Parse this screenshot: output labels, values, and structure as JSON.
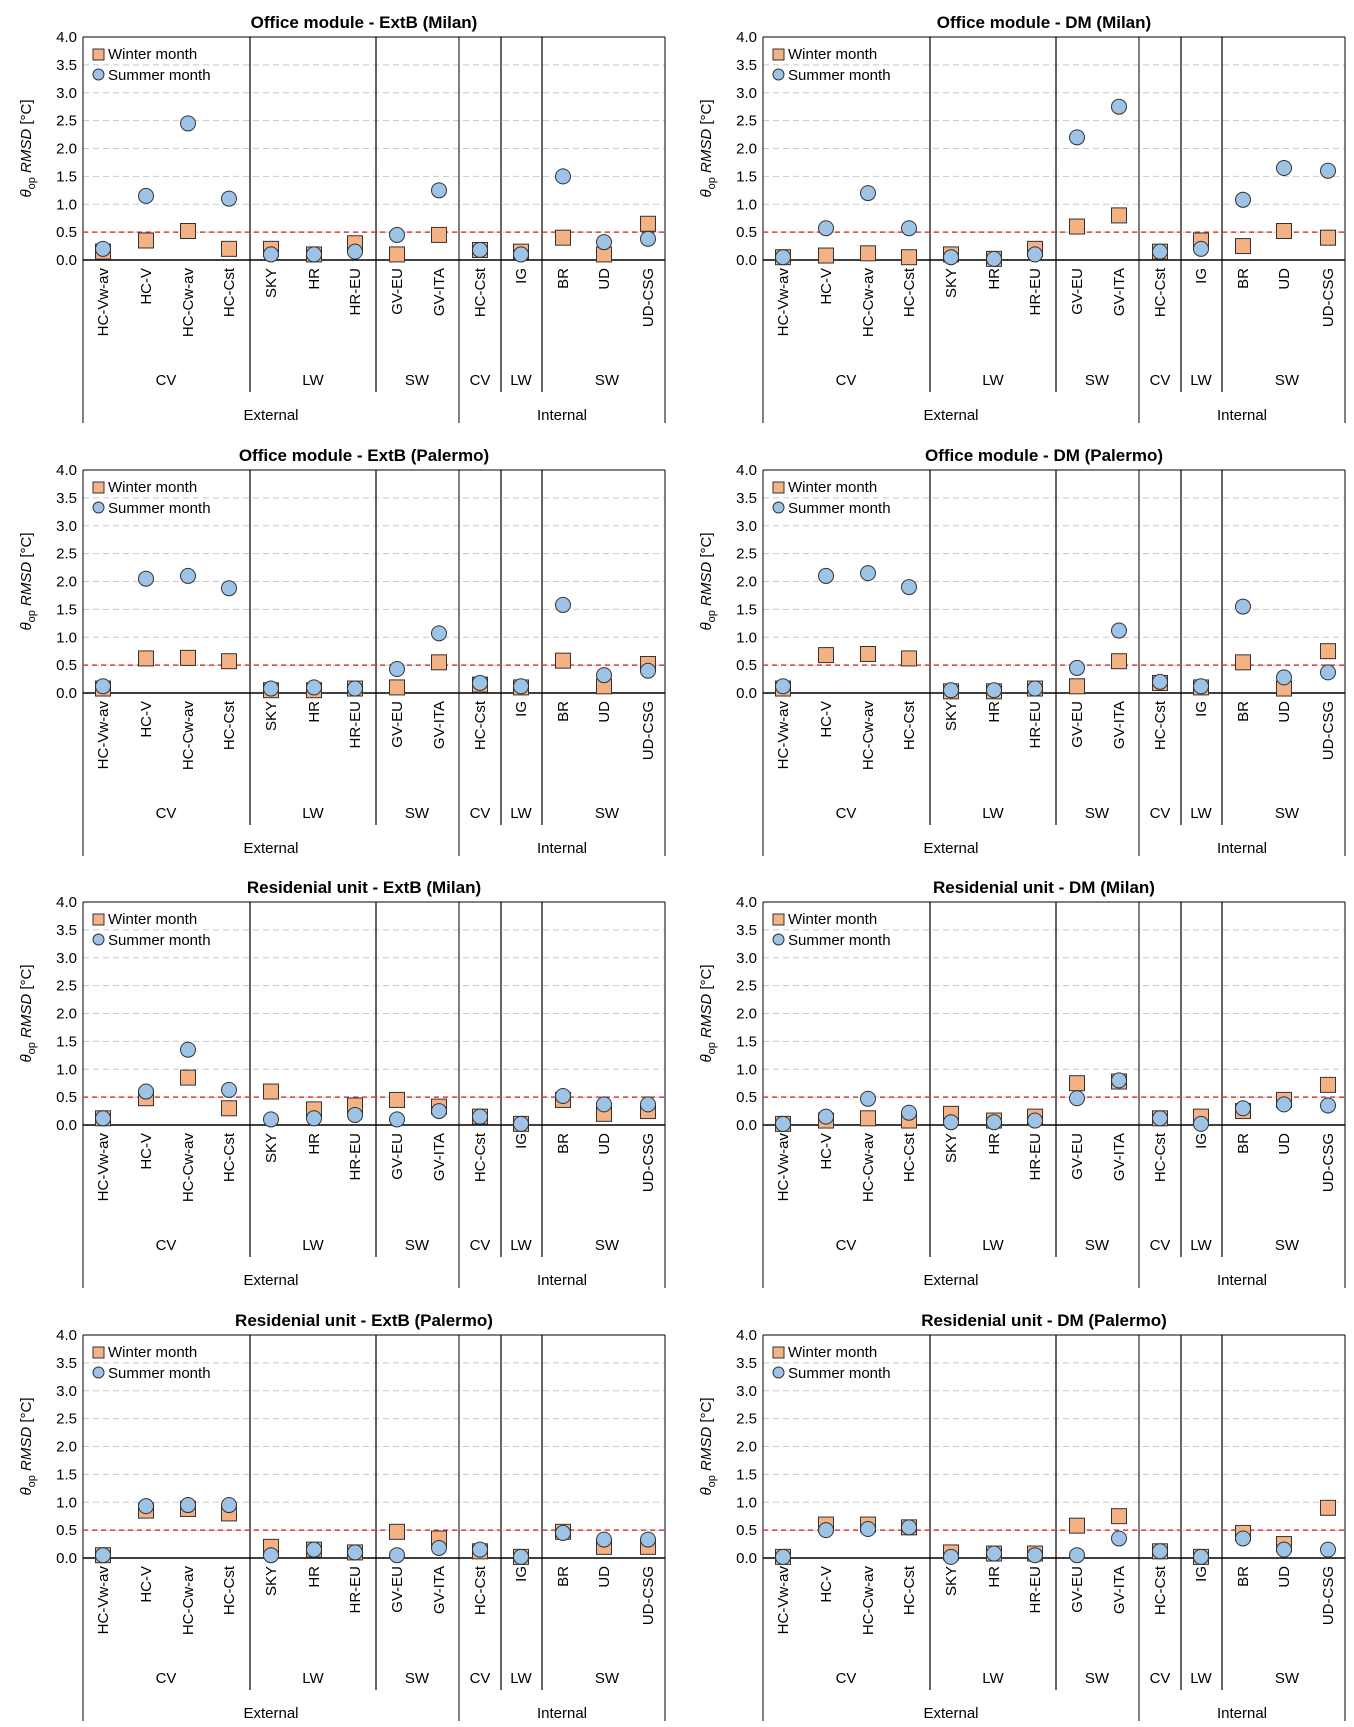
{
  "chart_data": [
    {
      "type": "scatter",
      "title": "Office module - ExtB (Milan)",
      "ylabel": {
        "symbol": "θ",
        "subscript": "op",
        "metric": "RMSD",
        "unit": "[°C]"
      },
      "ylim": [
        0,
        4.0
      ],
      "yticks": [
        "0.0",
        "0.5",
        "1.0",
        "1.5",
        "2.0",
        "2.5",
        "3.0",
        "3.5",
        "4.0"
      ],
      "categories": [
        "HC-Vw-av",
        "HC-V",
        "HC-Cw-av",
        "HC-Cst",
        "SKY",
        "HR",
        "HR-EU",
        "GV-EU",
        "GV-ITA",
        "HC-Cst",
        "IG",
        "BR",
        "UD",
        "UD-CSG"
      ],
      "groups": [
        [
          "CV",
          "LW",
          "SW",
          "CV",
          "LW",
          "SW"
        ]
      ],
      "supergroups": [
        "External",
        "Internal"
      ],
      "threshold": 0.5,
      "series": [
        {
          "name": "Winter month",
          "marker": "square",
          "color": "#F4B183",
          "values": [
            0.15,
            0.35,
            0.52,
            0.2,
            0.2,
            0.1,
            0.3,
            0.1,
            0.45,
            0.18,
            0.15,
            0.4,
            0.1,
            0.65
          ]
        },
        {
          "name": "Summer month",
          "marker": "circle",
          "color": "#9DC3E6",
          "values": [
            0.2,
            1.15,
            2.45,
            1.1,
            0.1,
            0.1,
            0.15,
            0.45,
            1.25,
            0.18,
            0.1,
            1.5,
            0.32,
            0.38
          ]
        }
      ]
    },
    {
      "type": "scatter",
      "title": "Office module - DM (Milan)",
      "ylabel": {
        "symbol": "θ",
        "subscript": "op",
        "metric": "RMSD",
        "unit": "[°C]"
      },
      "ylim": [
        0,
        4.0
      ],
      "yticks": [
        "0.0",
        "0.5",
        "1.0",
        "1.5",
        "2.0",
        "2.5",
        "3.0",
        "3.5",
        "4.0"
      ],
      "categories": [
        "HC-Vw-av",
        "HC-V",
        "HC-Cw-av",
        "HC-Cst",
        "SKY",
        "HR",
        "HR-EU",
        "GV-EU",
        "GV-ITA",
        "HC-Cst",
        "IG",
        "BR",
        "UD",
        "UD-CSG"
      ],
      "groups": [
        [
          "CV",
          "LW",
          "SW",
          "CV",
          "LW",
          "SW"
        ]
      ],
      "supergroups": [
        "External",
        "Internal"
      ],
      "threshold": 0.5,
      "series": [
        {
          "name": "Winter month",
          "marker": "square",
          "color": "#F4B183",
          "values": [
            0.05,
            0.08,
            0.12,
            0.05,
            0.1,
            0.02,
            0.2,
            0.6,
            0.8,
            0.15,
            0.35,
            0.25,
            0.52,
            0.4
          ]
        },
        {
          "name": "Summer month",
          "marker": "circle",
          "color": "#9DC3E6",
          "values": [
            0.05,
            0.57,
            1.2,
            0.57,
            0.05,
            0.02,
            0.1,
            2.2,
            2.75,
            0.15,
            0.2,
            1.08,
            1.65,
            1.6
          ]
        }
      ]
    },
    {
      "type": "scatter",
      "title": "Office module - ExtB (Palermo)",
      "ylabel": {
        "symbol": "θ",
        "subscript": "op",
        "metric": "RMSD",
        "unit": "[°C]"
      },
      "ylim": [
        0,
        4.0
      ],
      "yticks": [
        "0.0",
        "0.5",
        "1.0",
        "1.5",
        "2.0",
        "2.5",
        "3.0",
        "3.5",
        "4.0"
      ],
      "categories": [
        "HC-Vw-av",
        "HC-V",
        "HC-Cw-av",
        "HC-Cst",
        "SKY",
        "HR",
        "HR-EU",
        "GV-EU",
        "GV-ITA",
        "HC-Cst",
        "IG",
        "BR",
        "UD",
        "UD-CSG"
      ],
      "groups": [
        [
          "CV",
          "LW",
          "SW",
          "CV",
          "LW",
          "SW"
        ]
      ],
      "supergroups": [
        "External",
        "Internal"
      ],
      "threshold": 0.5,
      "series": [
        {
          "name": "Winter month",
          "marker": "square",
          "color": "#F4B183",
          "values": [
            0.08,
            0.62,
            0.63,
            0.57,
            0.05,
            0.05,
            0.08,
            0.1,
            0.55,
            0.15,
            0.1,
            0.58,
            0.12,
            0.52
          ]
        },
        {
          "name": "Summer month",
          "marker": "circle",
          "color": "#9DC3E6",
          "values": [
            0.12,
            2.05,
            2.1,
            1.88,
            0.08,
            0.1,
            0.08,
            0.43,
            1.07,
            0.18,
            0.12,
            1.58,
            0.32,
            0.4
          ]
        }
      ]
    },
    {
      "type": "scatter",
      "title": "Office module - DM (Palermo)",
      "ylabel": {
        "symbol": "θ",
        "subscript": "op",
        "metric": "RMSD",
        "unit": "[°C]"
      },
      "ylim": [
        0,
        4.0
      ],
      "yticks": [
        "0.0",
        "0.5",
        "1.0",
        "1.5",
        "2.0",
        "2.5",
        "3.0",
        "3.5",
        "4.0"
      ],
      "categories": [
        "HC-Vw-av",
        "HC-V",
        "HC-Cw-av",
        "HC-Cst",
        "SKY",
        "HR",
        "HR-EU",
        "GV-EU",
        "GV-ITA",
        "HC-Cst",
        "IG",
        "BR",
        "UD",
        "UD-CSG"
      ],
      "groups": [
        [
          "CV",
          "LW",
          "SW",
          "CV",
          "LW",
          "SW"
        ]
      ],
      "supergroups": [
        "External",
        "Internal"
      ],
      "threshold": 0.5,
      "series": [
        {
          "name": "Winter month",
          "marker": "square",
          "color": "#F4B183",
          "values": [
            0.08,
            0.68,
            0.7,
            0.62,
            0.03,
            0.03,
            0.08,
            0.12,
            0.57,
            0.18,
            0.1,
            0.55,
            0.08,
            0.75
          ]
        },
        {
          "name": "Summer month",
          "marker": "circle",
          "color": "#9DC3E6",
          "values": [
            0.12,
            2.1,
            2.15,
            1.9,
            0.05,
            0.05,
            0.08,
            0.45,
            1.12,
            0.2,
            0.12,
            1.55,
            0.28,
            0.37
          ]
        }
      ]
    },
    {
      "type": "scatter",
      "title": "Residenial unit - ExtB (Milan)",
      "ylabel": {
        "symbol": "θ",
        "subscript": "op",
        "metric": "RMSD",
        "unit": "[°C]"
      },
      "ylim": [
        0,
        4.0
      ],
      "yticks": [
        "0.0",
        "0.5",
        "1.0",
        "1.5",
        "2.0",
        "2.5",
        "3.0",
        "3.5",
        "4.0"
      ],
      "categories": [
        "HC-Vw-av",
        "HC-V",
        "HC-Cw-av",
        "HC-Cst",
        "SKY",
        "HR",
        "HR-EU",
        "GV-EU",
        "GV-ITA",
        "HC-Cst",
        "IG",
        "BR",
        "UD",
        "UD-CSG"
      ],
      "groups": [
        [
          "CV",
          "LW",
          "SW",
          "CV",
          "LW",
          "SW"
        ]
      ],
      "supergroups": [
        "External",
        "Internal"
      ],
      "threshold": 0.5,
      "series": [
        {
          "name": "Winter month",
          "marker": "square",
          "color": "#F4B183",
          "values": [
            0.12,
            0.48,
            0.85,
            0.3,
            0.6,
            0.28,
            0.35,
            0.45,
            0.33,
            0.15,
            0.02,
            0.45,
            0.2,
            0.25
          ]
        },
        {
          "name": "Summer month",
          "marker": "circle",
          "color": "#9DC3E6",
          "values": [
            0.12,
            0.6,
            1.35,
            0.63,
            0.1,
            0.12,
            0.18,
            0.1,
            0.25,
            0.15,
            0.02,
            0.52,
            0.37,
            0.37
          ]
        }
      ]
    },
    {
      "type": "scatter",
      "title": "Residenial unit - DM (Milan)",
      "ylabel": {
        "symbol": "θ",
        "subscript": "op",
        "metric": "RMSD",
        "unit": "[°C]"
      },
      "ylim": [
        0,
        4.0
      ],
      "yticks": [
        "0.0",
        "0.5",
        "1.0",
        "1.5",
        "2.0",
        "2.5",
        "3.0",
        "3.5",
        "4.0"
      ],
      "categories": [
        "HC-Vw-av",
        "HC-V",
        "HC-Cw-av",
        "HC-Cst",
        "SKY",
        "HR",
        "HR-EU",
        "GV-EU",
        "GV-ITA",
        "HC-Cst",
        "IG",
        "BR",
        "UD",
        "UD-CSG"
      ],
      "groups": [
        [
          "CV",
          "LW",
          "SW",
          "CV",
          "LW",
          "SW"
        ]
      ],
      "supergroups": [
        "External",
        "Internal"
      ],
      "threshold": 0.5,
      "series": [
        {
          "name": "Winter month",
          "marker": "square",
          "color": "#F4B183",
          "values": [
            0.02,
            0.08,
            0.12,
            0.08,
            0.2,
            0.08,
            0.15,
            0.75,
            0.78,
            0.12,
            0.15,
            0.25,
            0.45,
            0.72
          ]
        },
        {
          "name": "Summer month",
          "marker": "circle",
          "color": "#9DC3E6",
          "values": [
            0.02,
            0.15,
            0.47,
            0.22,
            0.05,
            0.05,
            0.08,
            0.48,
            0.8,
            0.12,
            0.02,
            0.3,
            0.37,
            0.35
          ]
        }
      ]
    },
    {
      "type": "scatter",
      "title": "Residenial unit - ExtB (Palermo)",
      "ylabel": {
        "symbol": "θ",
        "subscript": "op",
        "metric": "RMSD",
        "unit": "[°C]"
      },
      "ylim": [
        0,
        4.0
      ],
      "yticks": [
        "0.0",
        "0.5",
        "1.0",
        "1.5",
        "2.0",
        "2.5",
        "3.0",
        "3.5",
        "4.0"
      ],
      "categories": [
        "HC-Vw-av",
        "HC-V",
        "HC-Cw-av",
        "HC-Cst",
        "SKY",
        "HR",
        "HR-EU",
        "GV-EU",
        "GV-ITA",
        "HC-Cst",
        "IG",
        "BR",
        "UD",
        "UD-CSG"
      ],
      "groups": [
        [
          "CV",
          "LW",
          "SW",
          "CV",
          "LW",
          "SW"
        ]
      ],
      "supergroups": [
        "External",
        "Internal"
      ],
      "threshold": 0.5,
      "series": [
        {
          "name": "Winter month",
          "marker": "square",
          "color": "#F4B183",
          "values": [
            0.05,
            0.85,
            0.88,
            0.8,
            0.2,
            0.15,
            0.1,
            0.47,
            0.35,
            0.12,
            0.02,
            0.47,
            0.2,
            0.2
          ]
        },
        {
          "name": "Summer month",
          "marker": "circle",
          "color": "#9DC3E6",
          "values": [
            0.05,
            0.93,
            0.95,
            0.95,
            0.05,
            0.15,
            0.1,
            0.05,
            0.18,
            0.15,
            0.02,
            0.45,
            0.33,
            0.33
          ]
        }
      ]
    },
    {
      "type": "scatter",
      "title": "Residenial unit - DM (Palermo)",
      "ylabel": {
        "symbol": "θ",
        "subscript": "op",
        "metric": "RMSD",
        "unit": "[°C]"
      },
      "ylim": [
        0,
        4.0
      ],
      "yticks": [
        "0.0",
        "0.5",
        "1.0",
        "1.5",
        "2.0",
        "2.5",
        "3.0",
        "3.5",
        "4.0"
      ],
      "categories": [
        "HC-Vw-av",
        "HC-V",
        "HC-Cw-av",
        "HC-Cst",
        "SKY",
        "HR",
        "HR-EU",
        "GV-EU",
        "GV-ITA",
        "HC-Cst",
        "IG",
        "BR",
        "UD",
        "UD-CSG"
      ],
      "groups": [
        [
          "CV",
          "LW",
          "SW",
          "CV",
          "LW",
          "SW"
        ]
      ],
      "supergroups": [
        "External",
        "Internal"
      ],
      "threshold": 0.5,
      "series": [
        {
          "name": "Winter month",
          "marker": "square",
          "color": "#F4B183",
          "values": [
            0.02,
            0.6,
            0.6,
            0.55,
            0.1,
            0.08,
            0.08,
            0.58,
            0.75,
            0.12,
            0.02,
            0.45,
            0.25,
            0.9
          ]
        },
        {
          "name": "Summer month",
          "marker": "circle",
          "color": "#9DC3E6",
          "values": [
            0.02,
            0.5,
            0.52,
            0.55,
            0.02,
            0.08,
            0.05,
            0.05,
            0.35,
            0.12,
            0.02,
            0.35,
            0.15,
            0.15
          ]
        }
      ]
    }
  ],
  "style": {
    "threshold_color": "#E03C31",
    "grid_color": "#C8C8C8",
    "axis_color": "#000000"
  }
}
